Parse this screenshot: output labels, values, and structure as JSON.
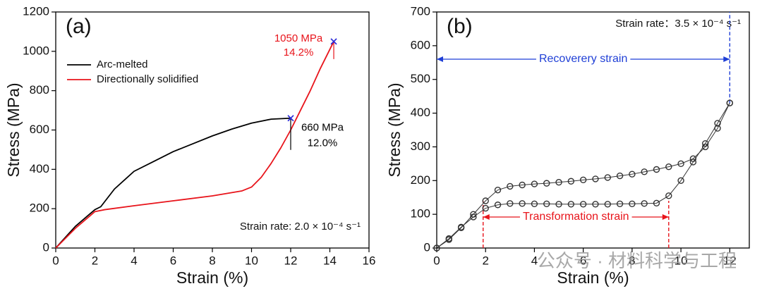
{
  "chart_data": [
    {
      "type": "line",
      "panel_label": "(a)",
      "xlabel": "Strain (%)",
      "ylabel": "Stress (MPa)",
      "note": "Strain rate: 2.0 × 10⁻⁴ s⁻¹",
      "xlim": [
        0,
        16
      ],
      "xticks": [
        0,
        2,
        4,
        6,
        8,
        10,
        12,
        14,
        16
      ],
      "ylim": [
        0,
        1200
      ],
      "yticks": [
        0,
        200,
        400,
        600,
        800,
        1000,
        1200
      ],
      "legend": "upper left",
      "series": [
        {
          "name": "Arc-melted",
          "color": "#000000",
          "x": [
            0,
            1,
            2,
            2.3,
            3,
            4,
            5,
            6,
            7,
            8,
            9,
            10,
            11,
            12
          ],
          "values": [
            0,
            110,
            195,
            210,
            300,
            390,
            440,
            490,
            530,
            570,
            605,
            635,
            655,
            660
          ]
        },
        {
          "name": "Directionally solidified",
          "color": "#e8141b",
          "x": [
            0,
            1,
            2,
            2.5,
            4,
            6,
            8,
            9.5,
            10,
            10.5,
            11,
            11.5,
            12,
            12.5,
            13,
            13.5,
            14,
            14.2
          ],
          "values": [
            0,
            100,
            185,
            195,
            215,
            240,
            265,
            290,
            310,
            360,
            430,
            510,
            600,
            700,
            800,
            910,
            1010,
            1050
          ]
        }
      ],
      "highlights": [
        {
          "x": 12.0,
          "y": 660,
          "labels": [
            "660 MPa",
            "12.0%"
          ],
          "color": "#000000"
        },
        {
          "x": 14.2,
          "y": 1050,
          "labels": [
            "1050 MPa",
            "14.2%"
          ],
          "color": "#e8141b"
        }
      ],
      "marker_color": "#2b2bd9"
    },
    {
      "type": "scatter",
      "panel_label": "(b)",
      "xlabel": "Strain (%)",
      "ylabel": "Stress (MPa)",
      "note": "Strain rate：3.5 × 10⁻⁴ s⁻¹",
      "xlim": [
        0,
        12.8
      ],
      "xticks": [
        0,
        2,
        4,
        6,
        8,
        10,
        12
      ],
      "ylim": [
        0,
        700
      ],
      "yticks": [
        0,
        100,
        200,
        300,
        400,
        500,
        600,
        700
      ],
      "series": [
        {
          "color": "#333333",
          "x": [
            0,
            0.5,
            1,
            1.5,
            2,
            2.5,
            3,
            3.5,
            4,
            4.5,
            5,
            5.5,
            6,
            6.5,
            7,
            7.5,
            8,
            8.5,
            9,
            9.5,
            10,
            10.5,
            11,
            11.5,
            12
          ],
          "values": [
            0,
            25,
            60,
            100,
            140,
            172,
            183,
            187,
            190,
            192,
            195,
            198,
            202,
            205,
            209,
            214,
            219,
            226,
            233,
            241,
            250,
            265,
            300,
            355,
            430
          ]
        },
        {
          "color": "#333333",
          "x": [
            12,
            11.5,
            11,
            10.5,
            10,
            9.5,
            9,
            8.5,
            8,
            7.5,
            7,
            6.5,
            6,
            5.5,
            5,
            4.5,
            4,
            3.5,
            3,
            2.5,
            2,
            1.5,
            1,
            0.5,
            0
          ],
          "values": [
            430,
            370,
            310,
            255,
            200,
            155,
            133,
            132,
            131,
            131,
            130,
            130,
            130,
            130,
            130,
            131,
            131,
            132,
            132,
            128,
            118,
            92,
            62,
            28,
            0
          ]
        }
      ],
      "spans": [
        {
          "label": "Recoverery strain",
          "from": 0,
          "to": 12,
          "y": 560,
          "color": "#1f3fd6",
          "dashes": [
            12
          ],
          "dash_ylim": [
            430,
            700
          ]
        },
        {
          "label": "Transformation strain",
          "from": 1.9,
          "to": 9.5,
          "y": 92,
          "color": "#e8141b",
          "dashes": [
            1.9,
            9.5
          ],
          "dash_ylim": [
            0,
            140
          ]
        }
      ],
      "watermark": "公众号 · 材料科学与工程"
    }
  ]
}
